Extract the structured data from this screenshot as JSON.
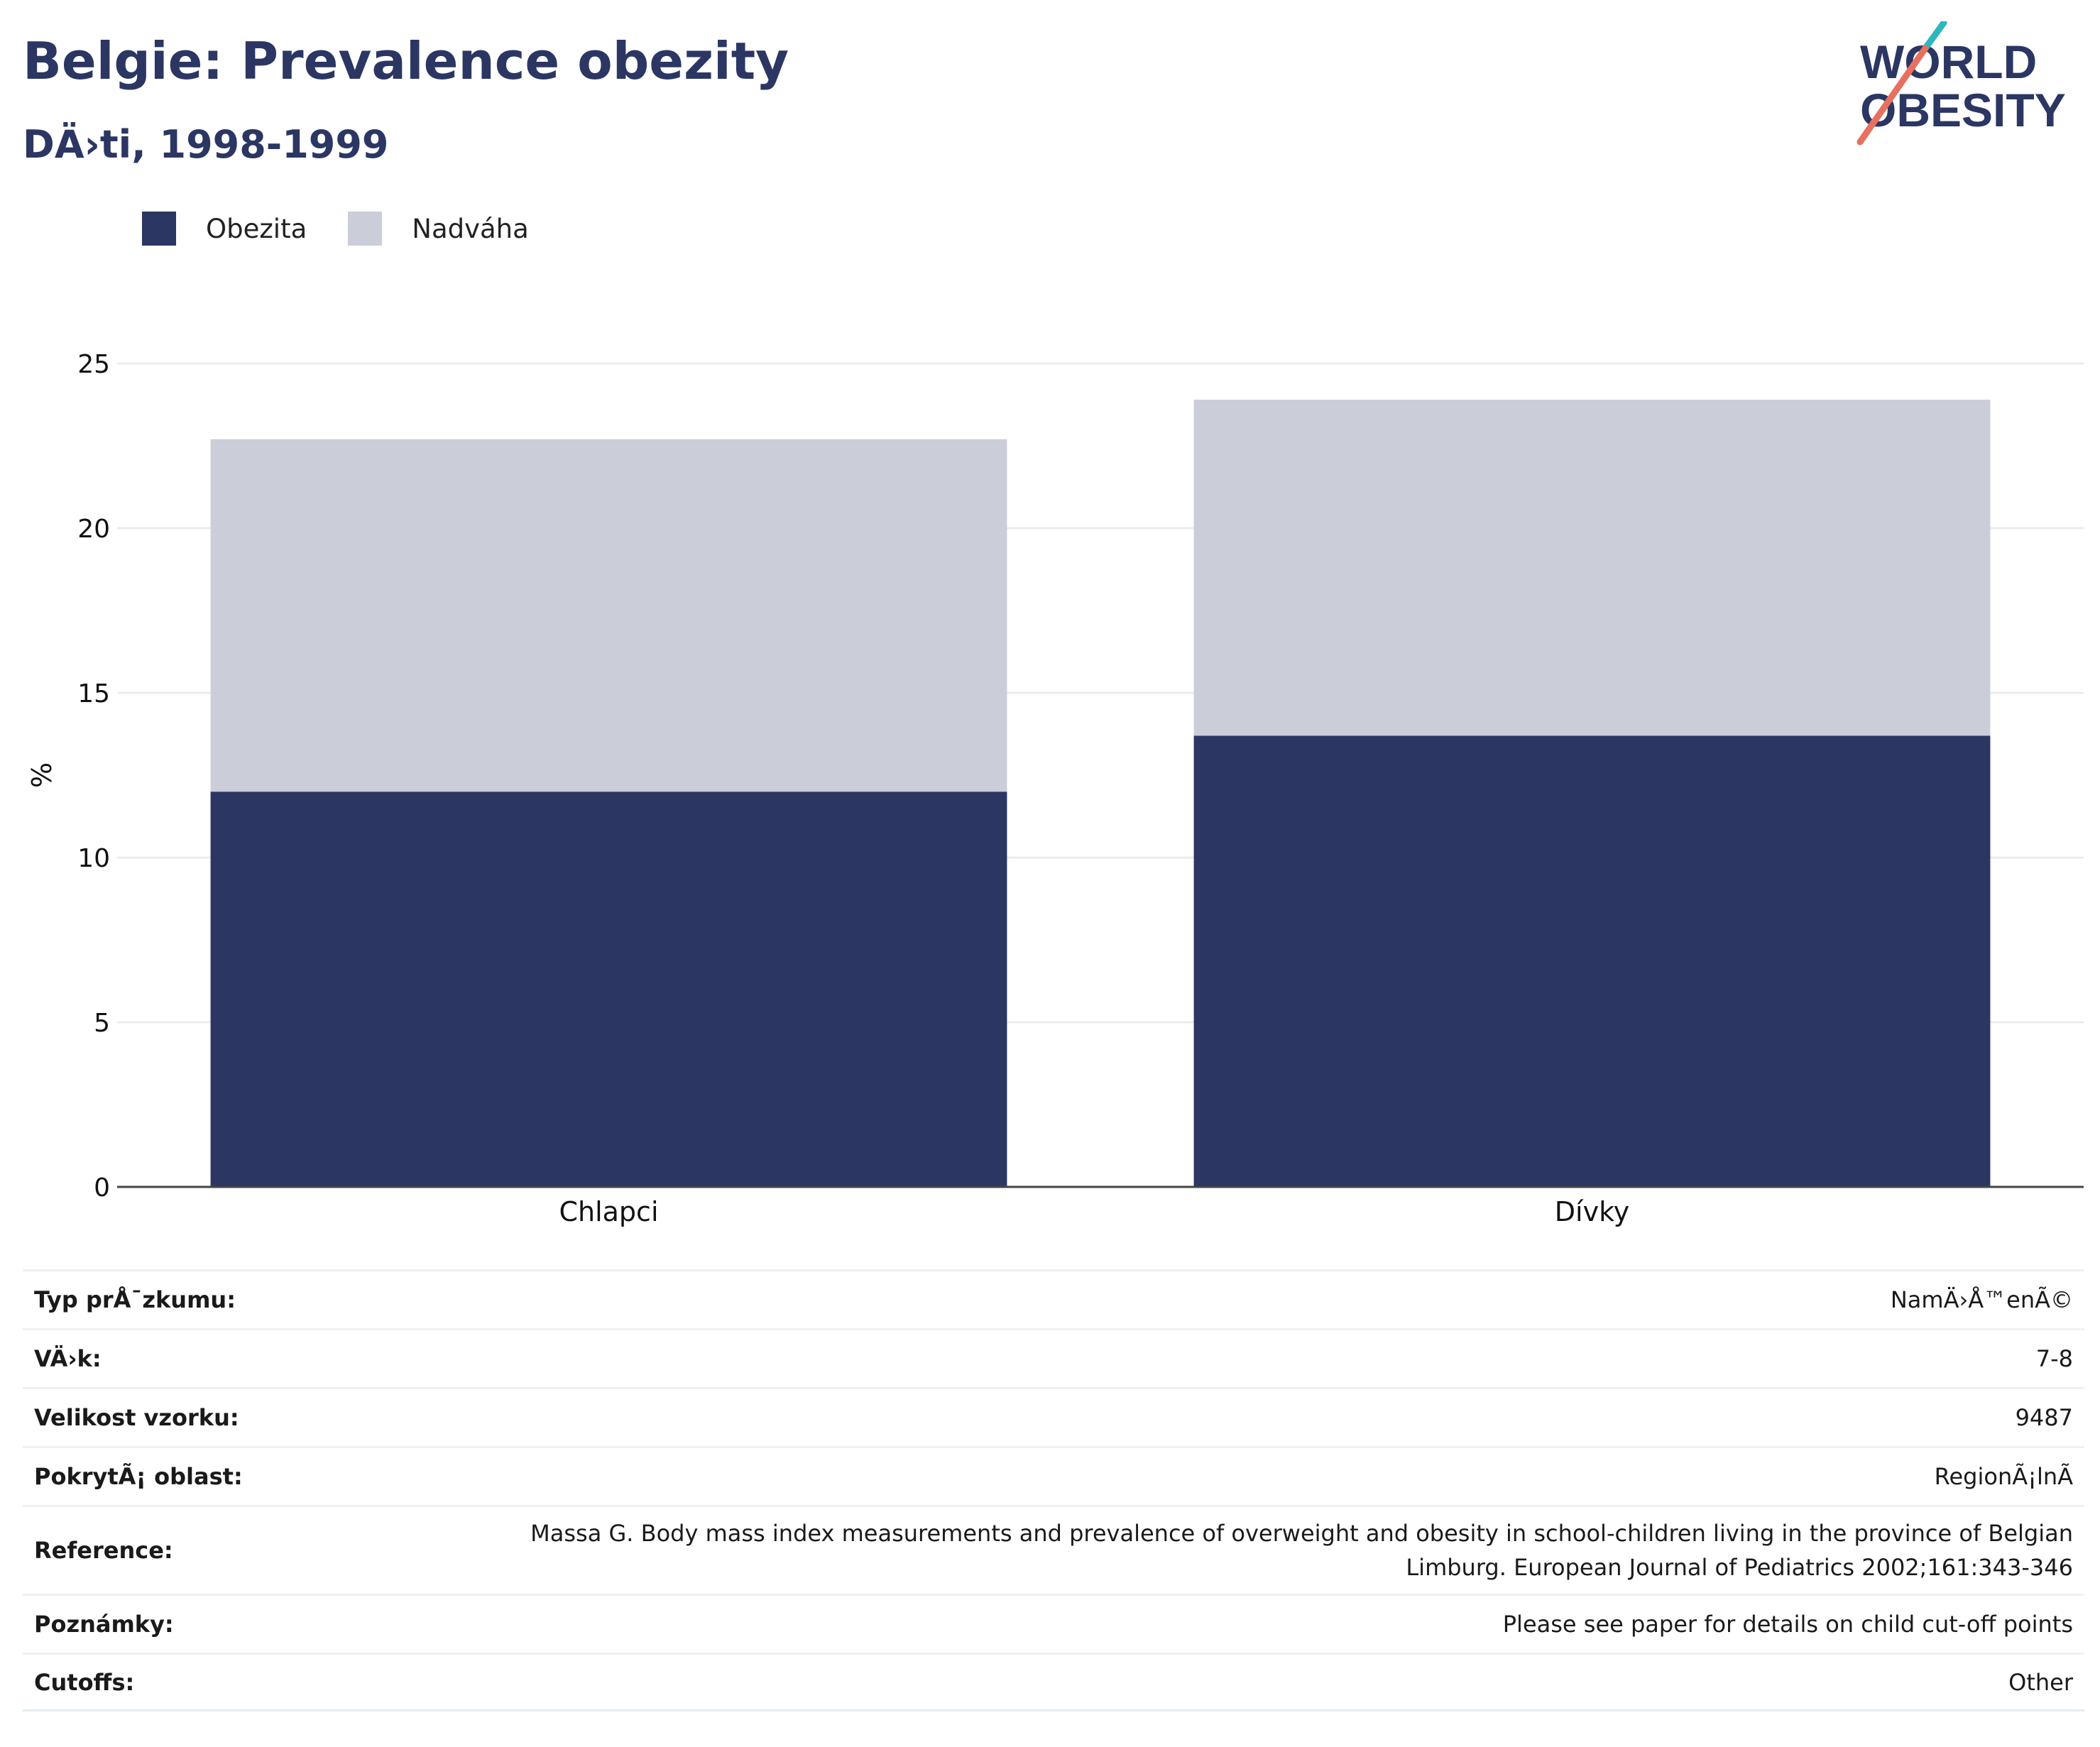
{
  "header": {
    "title": "Belgie: Prevalence obezity",
    "subtitle": "DÄ›ti, 1998-1999"
  },
  "logo": {
    "line1": "WORLD",
    "line2": "OBESITY",
    "accent_teal": "#2bb7bd",
    "accent_coral": "#e8705f",
    "text_color": "#2b3663"
  },
  "legend": {
    "placement": "top-left",
    "items": [
      {
        "label": "Obezita",
        "color": "#2b3663"
      },
      {
        "label": "Nadváha",
        "color": "#cbcdd8"
      }
    ]
  },
  "chart_data": {
    "type": "bar",
    "stacked": true,
    "categories": [
      "Chlapci",
      "Dívky"
    ],
    "series": [
      {
        "name": "Obezita",
        "values": [
          12.0,
          13.7
        ],
        "color": "#2b3663"
      },
      {
        "name": "Nadváha",
        "values": [
          10.7,
          10.2
        ],
        "color": "#cbcdd8"
      }
    ],
    "ylabel": "%",
    "ylim": [
      0,
      25
    ],
    "yticks": [
      0,
      5,
      10,
      15,
      20,
      25
    ],
    "grid": true
  },
  "details": [
    {
      "label": "Typ prÅ¯zkumu:",
      "value": "NamÄ›Å™enÃ©"
    },
    {
      "label": "VÄ›k:",
      "value": "7-8"
    },
    {
      "label": "Velikost vzorku:",
      "value": "9487"
    },
    {
      "label": "PokrytÃ¡ oblast:",
      "value": "RegionÃ¡lnÃ"
    },
    {
      "label": "Reference:",
      "value": "Massa G. Body mass index measurements and prevalence of overweight and obesity in school-children living in the province of Belgian Limburg. European Journal of Pediatrics 2002;161:343-346"
    },
    {
      "label": "Poznámky:",
      "value": "Please see paper for details on child cut-off points"
    },
    {
      "label": "Cutoffs:",
      "value": "Other"
    }
  ]
}
